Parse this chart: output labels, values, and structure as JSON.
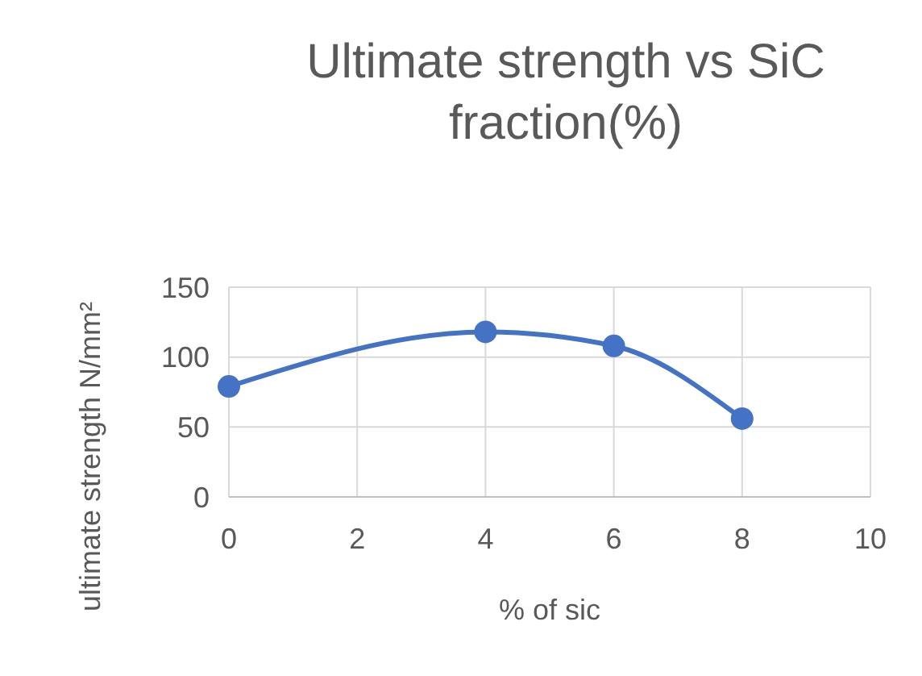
{
  "chart_data": {
    "type": "line",
    "title": "Ultimate strength vs SiC fraction(%)",
    "xlabel": "% of sic",
    "ylabel": "ultimate strength N/mm²",
    "x": [
      0,
      4,
      6,
      8
    ],
    "series": [
      {
        "color": "#4472c4",
        "values": [
          79,
          118,
          108,
          56
        ]
      }
    ],
    "xlim": [
      0,
      10
    ],
    "xticks": [
      0,
      2,
      4,
      6,
      8,
      10
    ],
    "ylim": [
      0,
      150
    ],
    "yticks": [
      0,
      50,
      100,
      150
    ],
    "grid": true,
    "marker": "circle",
    "line_style": "solid"
  }
}
